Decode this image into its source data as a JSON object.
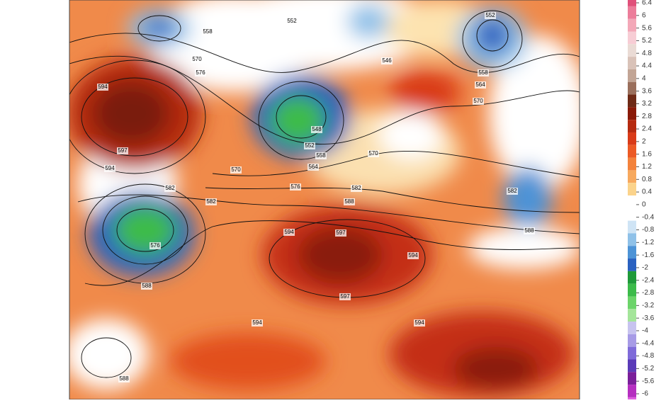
{
  "map": {
    "contour_labels": [
      "594",
      "597",
      "594",
      "552",
      "558",
      "570",
      "576",
      "552",
      "558",
      "564",
      "570",
      "546",
      "548",
      "552",
      "558",
      "564",
      "570",
      "570",
      "576",
      "582",
      "582",
      "582",
      "588",
      "594",
      "597",
      "594",
      "582",
      "588",
      "576",
      "588",
      "597",
      "594",
      "594",
      "588"
    ],
    "colorbar": {
      "labels": [
        6.4,
        6,
        5.6,
        5.2,
        4.8,
        4.4,
        4,
        3.6,
        3.2,
        2.8,
        2.4,
        2,
        1.6,
        1.2,
        0.8,
        0.4,
        0,
        -0.4,
        -0.8,
        -1.2,
        -1.6,
        -2,
        -2.4,
        -2.8,
        -3.2,
        -3.6,
        -4,
        -4.4,
        -4.8,
        -5.2,
        -5.6,
        -6
      ],
      "colors": [
        "#e0507a",
        "#ec7d9a",
        "#f3a8b8",
        "#f7cdd5",
        "#eadbd5",
        "#d9c2b8",
        "#c2a595",
        "#9a6f5c",
        "#6e2a16",
        "#8a1a08",
        "#b52a10",
        "#d93b18",
        "#ec5a25",
        "#f3823c",
        "#f7a95e",
        "#fbd38b",
        "#ffffff",
        "#ffffff",
        "#cfe4f5",
        "#8fc1e8",
        "#4d93d6",
        "#2a61c0",
        "#1f9a3a",
        "#3cbb4a",
        "#6cd46a",
        "#a4e59a",
        "#c7c3ef",
        "#a79be6",
        "#7f6bd9",
        "#5a3bb8",
        "#7a1f9a",
        "#b52fc0",
        "#e060e0"
      ]
    }
  }
}
